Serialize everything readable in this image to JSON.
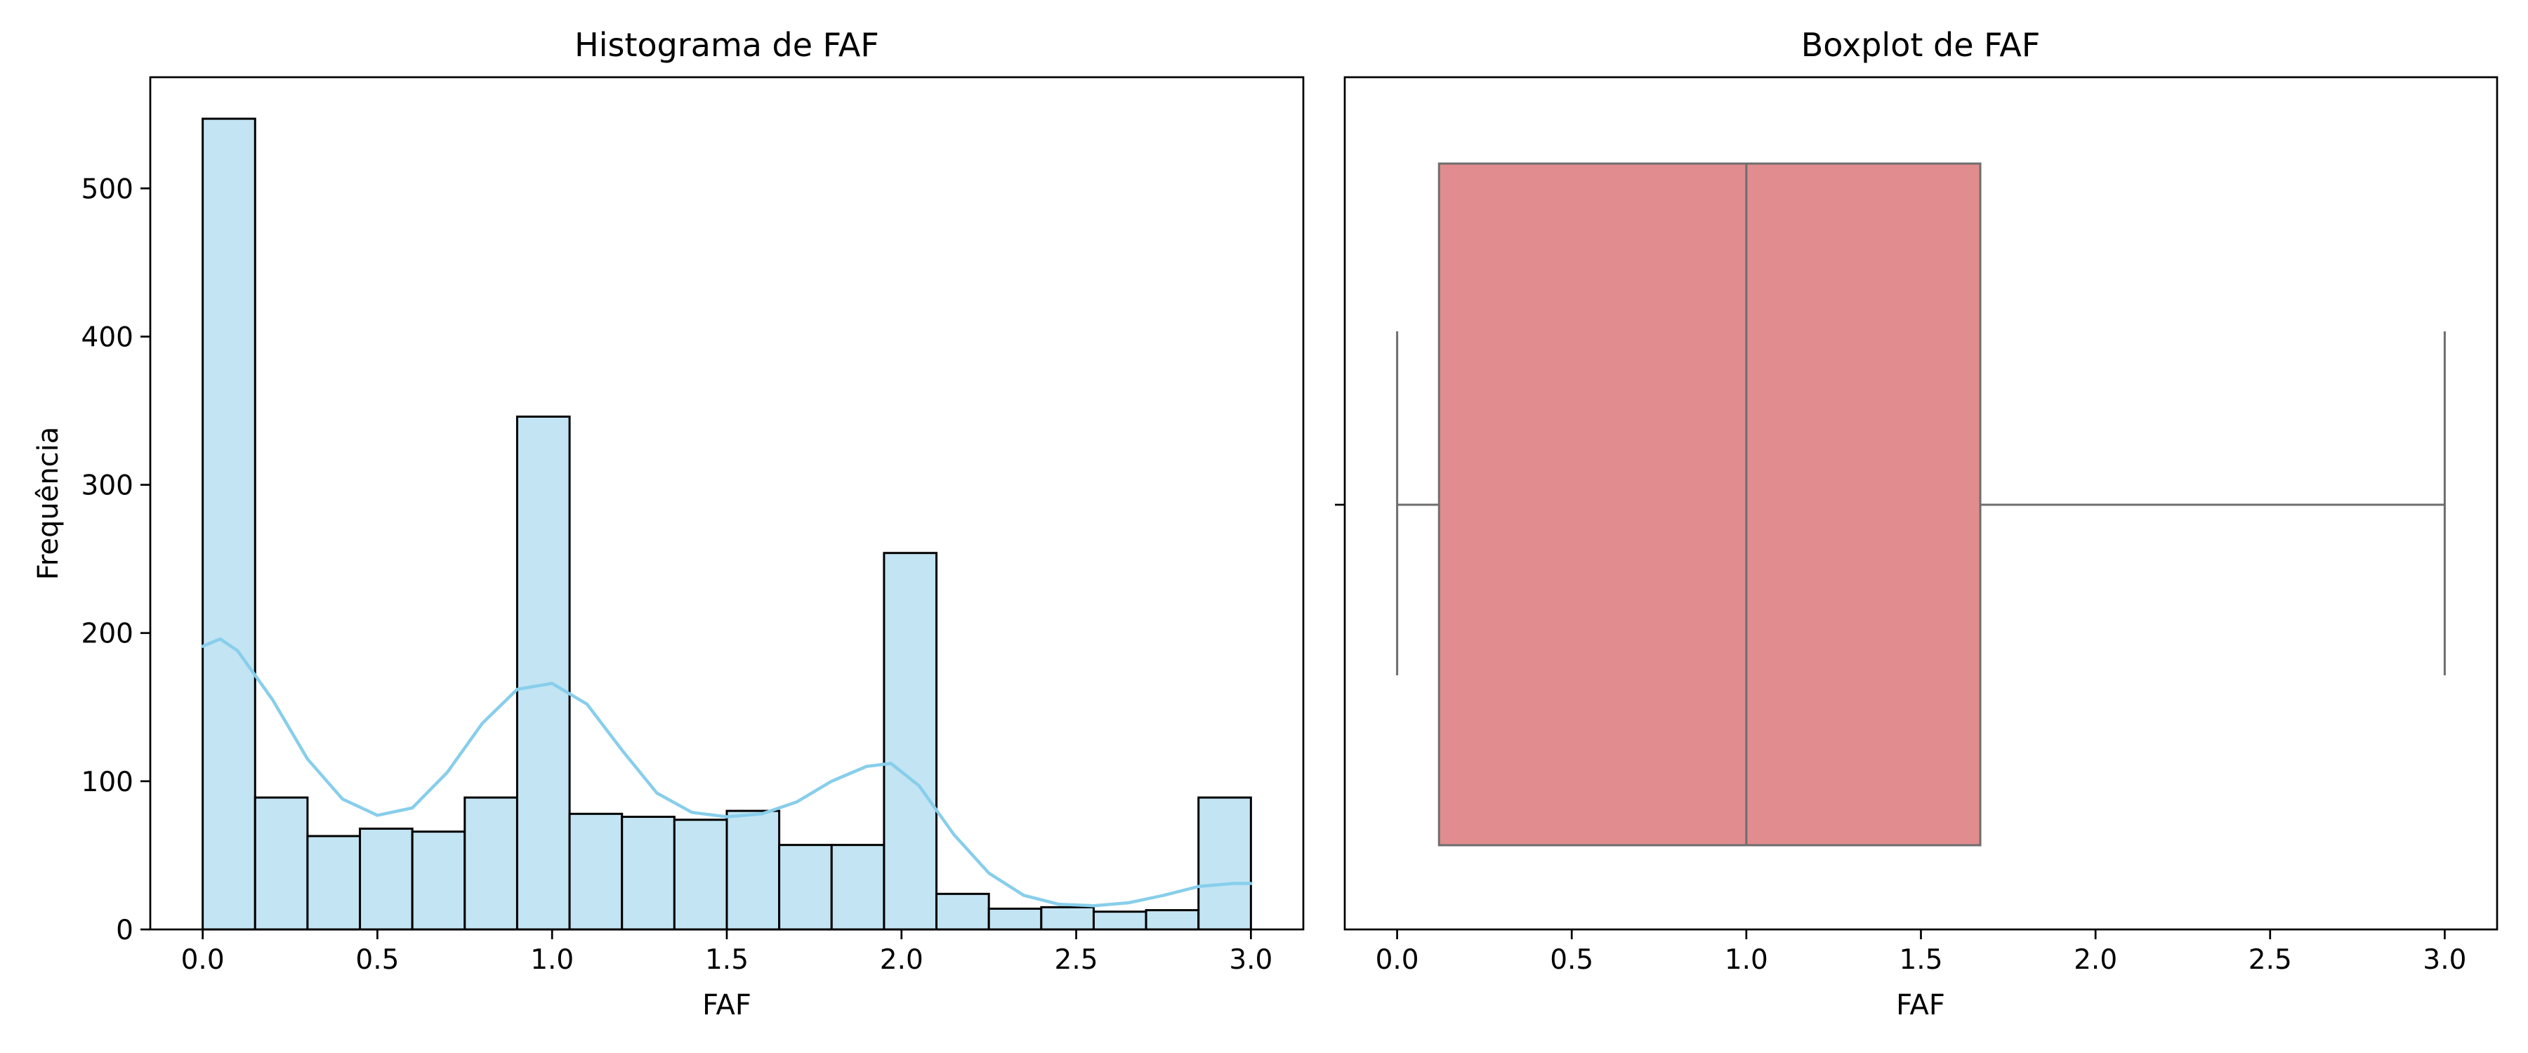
{
  "chart_data": [
    {
      "type": "bar",
      "title": "Histograma de FAF",
      "xlabel": "FAF",
      "ylabel": "Frequência",
      "xlim": [
        -0.15,
        3.15
      ],
      "ylim": [
        0,
        575
      ],
      "xticks": [
        0.0,
        0.5,
        1.0,
        1.5,
        2.0,
        2.5,
        3.0
      ],
      "xtick_labels": [
        "0.0",
        "0.5",
        "1.0",
        "1.5",
        "2.0",
        "2.5",
        "3.0"
      ],
      "yticks": [
        0,
        100,
        200,
        300,
        400,
        500
      ],
      "ytick_labels": [
        "0",
        "100",
        "200",
        "300",
        "400",
        "500"
      ],
      "bin_edges": [
        0.0,
        0.15,
        0.3,
        0.45,
        0.6,
        0.75,
        0.9,
        1.05,
        1.2,
        1.35,
        1.5,
        1.65,
        1.8,
        1.95,
        2.1,
        2.25,
        2.4,
        2.55,
        2.7,
        2.85,
        3.0
      ],
      "counts": [
        547,
        89,
        63,
        68,
        66,
        89,
        346,
        78,
        76,
        74,
        80,
        57,
        57,
        254,
        24,
        14,
        15,
        12,
        13,
        89
      ],
      "bar_color": "#c2e4f3",
      "edge_color": "#000000",
      "kde": {
        "x": [
          0.0,
          0.05,
          0.1,
          0.2,
          0.3,
          0.4,
          0.5,
          0.6,
          0.7,
          0.8,
          0.9,
          1.0,
          1.1,
          1.2,
          1.3,
          1.4,
          1.5,
          1.6,
          1.7,
          1.8,
          1.9,
          1.97,
          2.05,
          2.15,
          2.25,
          2.35,
          2.45,
          2.55,
          2.65,
          2.75,
          2.85,
          2.95,
          3.0
        ],
        "y": [
          191,
          196,
          188,
          155,
          115,
          88,
          77,
          82,
          106,
          139,
          162,
          166,
          152,
          121,
          92,
          79,
          76,
          78,
          86,
          100,
          110,
          112,
          97,
          64,
          38,
          23,
          17,
          16,
          18,
          23,
          29,
          31,
          31
        ],
        "color": "#87ceeb"
      }
    },
    {
      "type": "boxplot",
      "title": "Boxplot de FAF",
      "xlabel": "FAF",
      "xlim": [
        -0.15,
        3.15
      ],
      "xticks": [
        0.0,
        0.5,
        1.0,
        1.5,
        2.0,
        2.5,
        3.0
      ],
      "xtick_labels": [
        "0.0",
        "0.5",
        "1.0",
        "1.5",
        "2.0",
        "2.5",
        "3.0"
      ],
      "whisker_low": 0.0,
      "q1": 0.12,
      "median": 1.0,
      "q3": 1.67,
      "whisker_high": 3.0,
      "box_color": "#e18c8e",
      "line_color": "#6e6e6e"
    }
  ]
}
